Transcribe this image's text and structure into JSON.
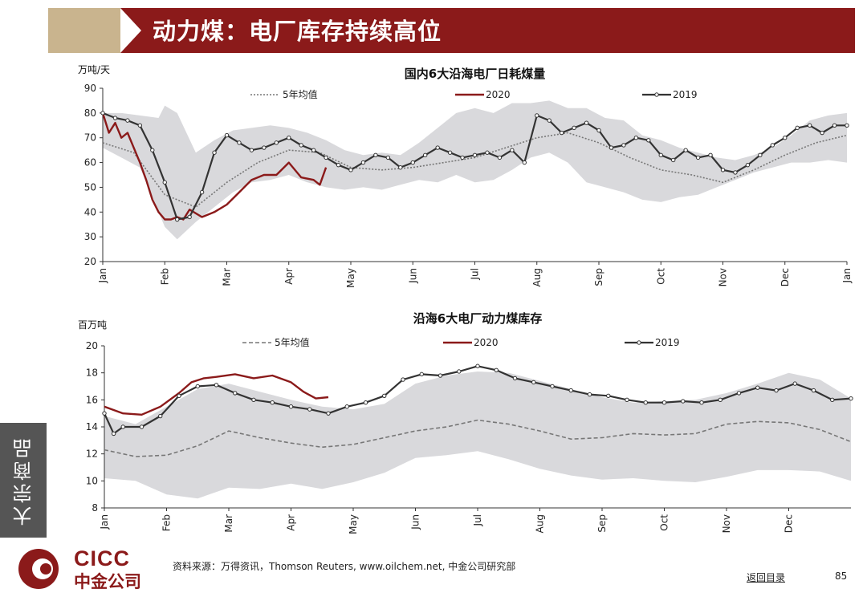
{
  "header": {
    "title": "动力煤：电厂库存持续高位"
  },
  "sidebar": {
    "section_label": "大宗商品"
  },
  "footer": {
    "source": "资料来源：万得资讯，Thomson Reuters, www.oilchem.net, 中金公司研究部",
    "back_link": "返回目录",
    "page_number": "85",
    "logo_en": "CICC",
    "logo_cn": "中金公司"
  },
  "colors": {
    "banner": "#8b1a1a",
    "banner_accent": "#c9b48e",
    "band": "#d9d9dc",
    "series_2020": "#8b1a1a",
    "series_2019": "#333333",
    "avg": "#777777"
  },
  "chart_data": [
    {
      "type": "line",
      "title": "国内6大沿海电厂日耗煤量",
      "ylabel": "万吨/天",
      "ylim": [
        20,
        90
      ],
      "yticks": [
        20,
        30,
        40,
        50,
        60,
        70,
        80,
        90
      ],
      "xticks": [
        "Jan",
        "Feb",
        "Mar",
        "Apr",
        "May",
        "Jun",
        "Jul",
        "Aug",
        "Sep",
        "Oct",
        "Nov",
        "Dec",
        "Jan"
      ],
      "legend": [
        "5年均值",
        "2020",
        "2019"
      ],
      "band": {
        "x": [
          0,
          0.3,
          0.6,
          0.9,
          1.0,
          1.2,
          1.5,
          1.8,
          2.1,
          2.4,
          2.7,
          3.0,
          3.3,
          3.6,
          3.9,
          4.2,
          4.5,
          4.8,
          5.1,
          5.4,
          5.7,
          6.0,
          6.3,
          6.6,
          6.9,
          7.2,
          7.5,
          7.8,
          8.1,
          8.4,
          8.7,
          9.0,
          9.3,
          9.6,
          9.9,
          10.2,
          10.5,
          10.8,
          11.1,
          11.4,
          11.7,
          12.0
        ],
        "upper": [
          80,
          80,
          79,
          78,
          83,
          80,
          64,
          69,
          73,
          74,
          75,
          74,
          72,
          69,
          65,
          63,
          64,
          63,
          68,
          74,
          80,
          82,
          80,
          84,
          84,
          85,
          82,
          82,
          78,
          77,
          71,
          69,
          66,
          64,
          62,
          61,
          63,
          66,
          71,
          77,
          79,
          80
        ],
        "lower": [
          66,
          62,
          58,
          40,
          34,
          29,
          36,
          42,
          48,
          52,
          53,
          55,
          52,
          50,
          49,
          50,
          49,
          51,
          53,
          52,
          55,
          52,
          53,
          57,
          62,
          64,
          60,
          52,
          50,
          48,
          45,
          44,
          46,
          47,
          50,
          53,
          56,
          58,
          60,
          60,
          61,
          60
        ]
      },
      "series": [
        {
          "name": "5年均值",
          "x": [
            0,
            0.5,
            1.0,
            1.5,
            2.0,
            2.5,
            3.0,
            3.5,
            4.0,
            4.5,
            5.0,
            5.5,
            6.0,
            6.5,
            7.0,
            7.5,
            8.0,
            8.5,
            9.0,
            9.5,
            10.0,
            10.5,
            11.0,
            11.5,
            12.0
          ],
          "y": [
            68,
            64,
            47,
            42,
            52,
            60,
            65,
            64,
            58,
            57,
            58,
            60,
            62,
            66,
            70,
            72,
            68,
            62,
            57,
            55,
            52,
            57,
            63,
            68,
            71
          ]
        },
        {
          "name": "2020",
          "x": [
            0,
            0.1,
            0.2,
            0.3,
            0.4,
            0.5,
            0.6,
            0.7,
            0.8,
            0.9,
            1.0,
            1.1,
            1.2,
            1.3,
            1.4,
            1.6,
            1.8,
            2.0,
            2.2,
            2.4,
            2.6,
            2.8,
            3.0,
            3.2,
            3.4,
            3.5,
            3.6
          ],
          "y": [
            80,
            72,
            76,
            70,
            72,
            66,
            60,
            53,
            45,
            40,
            37,
            37,
            38,
            37,
            41,
            38,
            40,
            43,
            48,
            53,
            55,
            55,
            60,
            54,
            53,
            51,
            58
          ]
        },
        {
          "name": "2019",
          "x": [
            0,
            0.2,
            0.4,
            0.6,
            0.8,
            1.0,
            1.2,
            1.4,
            1.6,
            1.8,
            2.0,
            2.2,
            2.4,
            2.6,
            2.8,
            3.0,
            3.2,
            3.4,
            3.6,
            3.8,
            4.0,
            4.2,
            4.4,
            4.6,
            4.8,
            5.0,
            5.2,
            5.4,
            5.6,
            5.8,
            6.0,
            6.2,
            6.4,
            6.6,
            6.8,
            7.0,
            7.2,
            7.4,
            7.6,
            7.8,
            8.0,
            8.2,
            8.4,
            8.6,
            8.8,
            9.0,
            9.2,
            9.4,
            9.6,
            9.8,
            10.0,
            10.2,
            10.4,
            10.6,
            10.8,
            11.0,
            11.2,
            11.4,
            11.6,
            11.8,
            12.0
          ],
          "y": [
            80,
            78,
            77,
            75,
            65,
            52,
            37,
            38,
            48,
            64,
            71,
            68,
            65,
            66,
            68,
            70,
            67,
            65,
            62,
            59,
            57,
            60,
            63,
            62,
            58,
            60,
            63,
            66,
            64,
            62,
            63,
            64,
            62,
            65,
            60,
            79,
            77,
            72,
            74,
            76,
            73,
            66,
            67,
            70,
            69,
            63,
            61,
            65,
            62,
            63,
            57,
            56,
            59,
            63,
            67,
            70,
            74,
            75,
            72,
            75,
            75
          ]
        }
      ]
    },
    {
      "type": "line",
      "title": "沿海6大电厂动力煤库存",
      "ylabel": "百万吨",
      "ylim": [
        8,
        20
      ],
      "yticks": [
        8,
        10,
        12,
        14,
        16,
        18,
        20
      ],
      "xticks": [
        "Jan",
        "Feb",
        "Mar",
        "Apr",
        "May",
        "Jun",
        "Jul",
        "Aug",
        "Sep",
        "Oct",
        "Nov",
        "Dec"
      ],
      "legend": [
        "5年均值",
        "2020",
        "2019"
      ],
      "band": {
        "x": [
          0,
          0.5,
          1.0,
          1.5,
          2.0,
          2.5,
          3.0,
          3.5,
          4.0,
          4.5,
          5.0,
          5.5,
          6.0,
          6.5,
          7.0,
          7.5,
          8.0,
          8.5,
          9.0,
          9.5,
          10.0,
          10.5,
          11.0,
          11.5,
          12.0
        ],
        "upper": [
          14.8,
          14.2,
          15.5,
          16.8,
          17.2,
          16.6,
          16.0,
          15.5,
          15.3,
          15.7,
          17.2,
          17.8,
          18.1,
          18.0,
          17.4,
          16.8,
          16.2,
          15.8,
          15.9,
          16.0,
          16.5,
          17.2,
          18.0,
          17.5,
          16.1
        ],
        "lower": [
          10.2,
          10.0,
          9.0,
          8.7,
          9.5,
          9.4,
          9.8,
          9.4,
          9.9,
          10.6,
          11.7,
          11.9,
          12.2,
          11.6,
          10.9,
          10.4,
          10.1,
          10.2,
          10.0,
          9.9,
          10.3,
          10.8,
          10.8,
          10.7,
          10.0
        ]
      },
      "series": [
        {
          "name": "5年均值",
          "x": [
            0,
            0.5,
            1.0,
            1.5,
            2.0,
            2.5,
            3.0,
            3.5,
            4.0,
            4.5,
            5.0,
            5.5,
            6.0,
            6.5,
            7.0,
            7.5,
            8.0,
            8.5,
            9.0,
            9.5,
            10.0,
            10.5,
            11.0,
            11.5,
            12.0
          ],
          "y": [
            12.3,
            11.8,
            11.9,
            12.6,
            13.7,
            13.2,
            12.8,
            12.5,
            12.7,
            13.2,
            13.7,
            14.0,
            14.5,
            14.2,
            13.7,
            13.1,
            13.2,
            13.5,
            13.4,
            13.5,
            14.2,
            14.4,
            14.3,
            13.8,
            12.9
          ]
        },
        {
          "name": "2020",
          "x": [
            0,
            0.3,
            0.6,
            0.9,
            1.2,
            1.4,
            1.6,
            1.8,
            2.1,
            2.4,
            2.7,
            3.0,
            3.2,
            3.4,
            3.6
          ],
          "y": [
            15.5,
            15.0,
            14.9,
            15.5,
            16.5,
            17.3,
            17.6,
            17.7,
            17.9,
            17.6,
            17.8,
            17.3,
            16.6,
            16.1,
            16.2
          ]
        },
        {
          "name": "2019",
          "x": [
            0,
            0.15,
            0.3,
            0.6,
            0.9,
            1.2,
            1.5,
            1.8,
            2.1,
            2.4,
            2.7,
            3.0,
            3.3,
            3.6,
            3.9,
            4.2,
            4.5,
            4.8,
            5.1,
            5.4,
            5.7,
            6.0,
            6.3,
            6.6,
            6.9,
            7.2,
            7.5,
            7.8,
            8.1,
            8.4,
            8.7,
            9.0,
            9.3,
            9.6,
            9.9,
            10.2,
            10.5,
            10.8,
            11.1,
            11.4,
            11.7,
            12.0
          ],
          "y": [
            15.0,
            13.5,
            14.0,
            14.0,
            14.8,
            16.3,
            17.0,
            17.1,
            16.5,
            16.0,
            15.8,
            15.5,
            15.3,
            15.0,
            15.5,
            15.8,
            16.3,
            17.5,
            17.9,
            17.8,
            18.1,
            18.5,
            18.2,
            17.6,
            17.3,
            17.0,
            16.7,
            16.4,
            16.3,
            16.0,
            15.8,
            15.8,
            15.9,
            15.8,
            16.0,
            16.5,
            16.9,
            16.7,
            17.2,
            16.7,
            16.0,
            16.1
          ]
        }
      ]
    }
  ]
}
